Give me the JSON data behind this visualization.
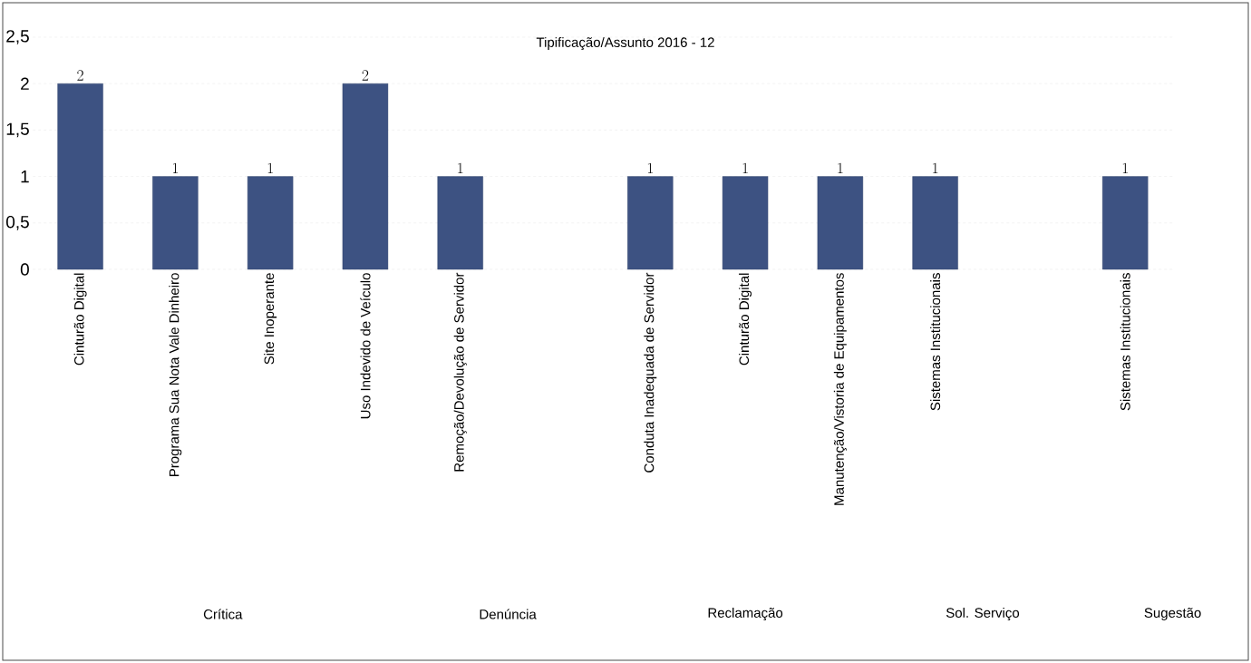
{
  "chart_data": {
    "type": "bar",
    "title": "Tipificação/Assunto 2016 - 12",
    "categories": [
      "Cinturão Digital",
      "Programa Sua Nota Vale Dinheiro",
      "Site Inoperante",
      "Uso Indevido de Veículo",
      "Remoção/Devolução de Servidor",
      null,
      "Conduta Inadequada de Servidor",
      "Cinturão Digital",
      "Manutenção/Vistoria de Equipamentos",
      "Sistemas Institucionais",
      null,
      "Sistemas Institucionais"
    ],
    "values": [
      2,
      1,
      1,
      2,
      1,
      null,
      1,
      1,
      1,
      1,
      null,
      1
    ],
    "color": "#3d5282",
    "ylim": [
      0,
      2.5
    ],
    "yticks": [
      0,
      {
        "value": 0.5,
        "label": "0,5"
      },
      1,
      {
        "value": 1.5,
        "label": "1,5"
      },
      2,
      {
        "value": 2.5,
        "label": "2,5"
      }
    ],
    "grid": "y",
    "data_labels": true,
    "annotations": [
      "Crítica",
      "Denúncia",
      "Reclamação",
      "Sol. Serviço",
      "Sugestão"
    ]
  }
}
